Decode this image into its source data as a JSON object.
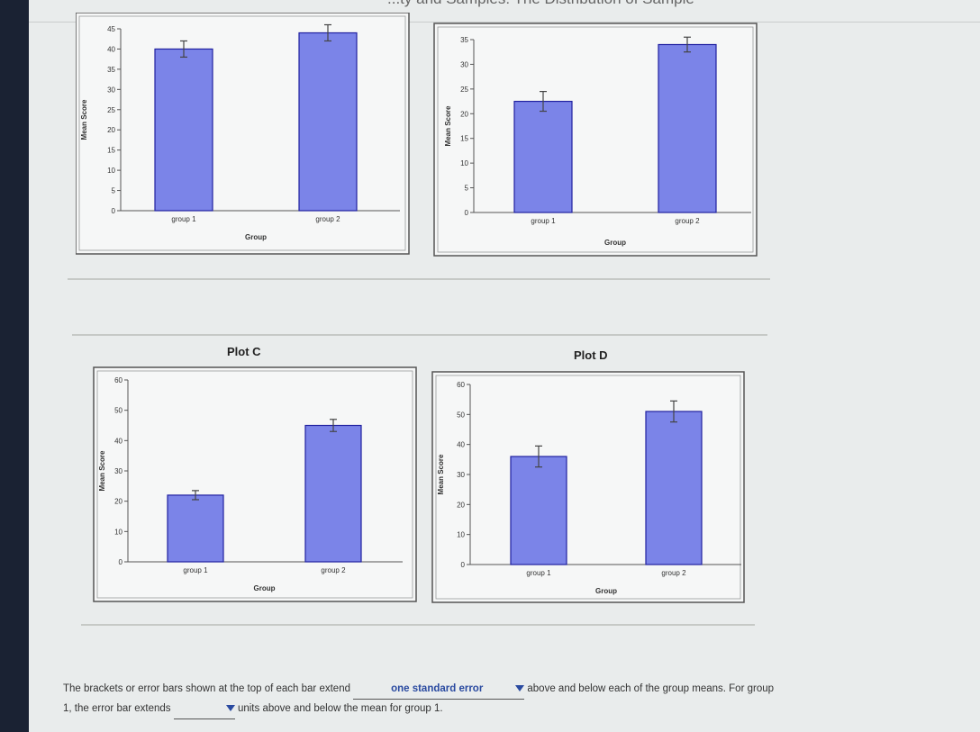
{
  "header": {
    "title": "...ty and Samples: The Distribution of Sample Means"
  },
  "plots": [
    {
      "id": "A",
      "label": "",
      "ylabel": "Mean Score",
      "xlabel": "Group",
      "yticks": [
        0,
        5,
        10,
        15,
        20,
        25,
        30,
        35,
        40,
        45
      ],
      "ymax": 45,
      "categories": [
        "group 1",
        "group 2"
      ],
      "values": [
        40,
        44
      ],
      "errors": [
        2,
        2
      ]
    },
    {
      "id": "B",
      "label": "",
      "ylabel": "Mean Score",
      "xlabel": "Group",
      "yticks": [
        0,
        5,
        10,
        15,
        20,
        25,
        30,
        35
      ],
      "ymax": 35,
      "categories": [
        "group 1",
        "group 2"
      ],
      "values": [
        22.5,
        34
      ],
      "errors": [
        2,
        1.5
      ]
    },
    {
      "id": "C",
      "label": "Plot C",
      "ylabel": "Mean Score",
      "xlabel": "Group",
      "yticks": [
        0,
        10,
        20,
        30,
        40,
        50,
        60
      ],
      "ymax": 60,
      "categories": [
        "group 1",
        "group 2"
      ],
      "values": [
        22,
        45
      ],
      "errors": [
        1.5,
        2
      ]
    },
    {
      "id": "D",
      "label": "Plot D",
      "ylabel": "Mean Score",
      "xlabel": "Group",
      "yticks": [
        0,
        10,
        20,
        30,
        40,
        50,
        60
      ],
      "ymax": 60,
      "categories": [
        "group 1",
        "group 2"
      ],
      "values": [
        36,
        51
      ],
      "errors": [
        3.5,
        3.5
      ]
    }
  ],
  "chart_data": [
    {
      "type": "bar",
      "title": "",
      "xlabel": "Group",
      "ylabel": "Mean Score",
      "ylim": [
        0,
        45
      ],
      "categories": [
        "group 1",
        "group 2"
      ],
      "values": [
        40,
        44
      ],
      "errors": [
        2,
        2
      ]
    },
    {
      "type": "bar",
      "title": "",
      "xlabel": "Group",
      "ylabel": "Mean Score",
      "ylim": [
        0,
        35
      ],
      "categories": [
        "group 1",
        "group 2"
      ],
      "values": [
        22.5,
        34
      ],
      "errors": [
        2,
        1.5
      ]
    },
    {
      "type": "bar",
      "title": "Plot C",
      "xlabel": "Group",
      "ylabel": "Mean Score",
      "ylim": [
        0,
        60
      ],
      "categories": [
        "group 1",
        "group 2"
      ],
      "values": [
        22,
        45
      ],
      "errors": [
        1.5,
        2
      ]
    },
    {
      "type": "bar",
      "title": "Plot D",
      "xlabel": "Group",
      "ylabel": "Mean Score",
      "ylim": [
        0,
        60
      ],
      "categories": [
        "group 1",
        "group 2"
      ],
      "values": [
        36,
        51
      ],
      "errors": [
        3.5,
        3.5
      ]
    }
  ],
  "question": {
    "part1": "The brackets or error bars shown at the top of each bar extend",
    "dropdown1_value": "one standard error",
    "part2": "above and below each of the group means. For group",
    "part3": "1, the error bar extends",
    "dropdown2_value": "",
    "part4": "units above and below the mean for group 1."
  },
  "icons": {
    "dropdown": "chevron-down-icon",
    "error_bar": "error-bar-icon"
  },
  "colors": {
    "bar_fill": "#7b84e8",
    "bar_stroke": "#2020a0",
    "accent": "#2a4aa0"
  }
}
